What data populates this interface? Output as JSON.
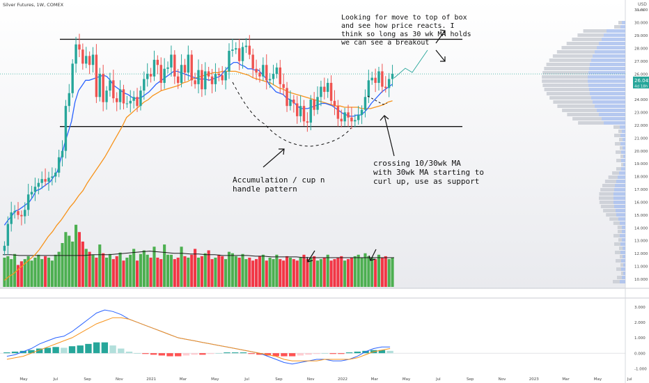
{
  "header": {
    "title": "Silver Futures, 1W, COMEX",
    "currency": "USD",
    "currency_sub": "auto"
  },
  "price_badge": {
    "price": "26.045",
    "countdown": "4d 18h"
  },
  "annotations": {
    "top_note": [
      "Looking for move to top of box",
      "and see how price reacts. I",
      "think so long as 30 wk MA holds",
      "we can see a breakout"
    ],
    "cup_note": [
      "Accumulation / cup n",
      "handle pattern"
    ],
    "ma_note": [
      "crossing 10/30wk MA",
      "with 30wk MA starting to",
      "curl up, use as support"
    ]
  },
  "colors": {
    "up": "#26a69a",
    "down": "#ef5350",
    "vol_up": "#4caf50",
    "vol_down": "#f23645",
    "ma10": "#2962ff",
    "ma30": "#f7931a",
    "macd": "#2962ff",
    "signal": "#f7931a"
  },
  "chart_data": [
    {
      "type": "candlestick",
      "ylim": [
        9.5,
        31.6
      ],
      "y_ticks": [
        "31.000",
        "30.000",
        "29.000",
        "28.000",
        "27.000",
        "26.000",
        "25.000",
        "24.000",
        "23.000",
        "22.000",
        "21.000",
        "20.000",
        "19.000",
        "18.000",
        "17.000",
        "16.000",
        "15.000",
        "14.000",
        "13.000",
        "12.000",
        "11.000",
        "10.000"
      ],
      "x_ticks": [
        "May",
        "Jul",
        "Sep",
        "Nov",
        "2021",
        "Mar",
        "May",
        "Jul",
        "Sep",
        "Nov",
        "2022",
        "Mar",
        "May",
        "Jul",
        "Sep",
        "Nov",
        "2023",
        "Mar",
        "May",
        "Jul"
      ],
      "box_lines": [
        28.7,
        21.9
      ],
      "close": [
        12.6,
        14.3,
        15.2,
        15.3,
        15.0,
        14.9,
        15.4,
        16.6,
        16.8,
        17.2,
        17.5,
        17.8,
        17.6,
        17.9,
        18.0,
        18.3,
        19.5,
        20.0,
        23.5,
        24.5,
        26.8,
        28.3,
        27.9,
        26.8,
        27.4,
        26.7,
        27.5,
        24.2,
        26.0,
        23.8,
        24.7,
        25.5,
        24.1,
        23.8,
        24.8,
        23.7,
        23.7,
        23.9,
        24.2,
        23.5,
        24.7,
        25.6,
        26.0,
        25.8,
        27.1,
        26.7,
        25.3,
        26.4,
        26.5,
        27.5,
        25.8,
        25.3,
        26.7,
        26.1,
        27.5,
        25.5,
        25.2,
        26.3,
        24.8,
        26.2,
        25.8,
        25.2,
        26.0,
        25.9,
        25.5,
        26.2,
        27.8,
        27.9,
        28.0,
        27.0,
        28.1,
        28.2,
        27.5,
        26.4,
        26.1,
        25.8,
        26.7,
        25.5,
        25.6,
        26.0,
        26.5,
        25.2,
        24.9,
        23.5,
        24.0,
        23.7,
        22.7,
        23.5,
        22.3,
        22.2,
        24.0,
        23.2,
        24.2,
        25.0,
        24.6,
        25.3,
        23.9,
        23.5,
        22.5,
        22.3,
        23.0,
        22.6,
        22.3,
        22.4,
        22.8,
        23.2,
        24.2,
        25.5,
        25.7,
        25.3,
        26.2,
        25.0,
        24.9,
        25.6,
        26.0
      ],
      "ma10": [
        14.2,
        14.6,
        14.9,
        15.3,
        15.4,
        15.6,
        15.8,
        16.0,
        16.4,
        16.9,
        17.0,
        17.2,
        17.4,
        17.6,
        18.0,
        18.4,
        19.4,
        20.5,
        21.4,
        22.3,
        23.8,
        24.7,
        25.1,
        25.5,
        25.5,
        25.6,
        25.7,
        25.8,
        25.9,
        25.8,
        25.5,
        25.1,
        24.9,
        24.7,
        24.5,
        24.4,
        24.2,
        24.1,
        24.1,
        24.2,
        24.4,
        24.6,
        24.9,
        25.2,
        25.4,
        25.6,
        25.8,
        26.0,
        26.2,
        26.2,
        26.1,
        26.0,
        25.9,
        25.8,
        25.7,
        25.6,
        25.6,
        25.6,
        25.5,
        25.6,
        25.7,
        25.8,
        26.1,
        26.4,
        26.7,
        26.9,
        26.9,
        26.7,
        26.6,
        26.4,
        26.4,
        26.3,
        26.3,
        26.0,
        25.7,
        25.2,
        24.9,
        24.6,
        24.5,
        24.4,
        24.1,
        24.0,
        23.8,
        23.5,
        23.3,
        23.3,
        23.3,
        23.4,
        23.5,
        23.6,
        23.7,
        23.7,
        23.6,
        23.5,
        23.3,
        23.1,
        22.9,
        22.8,
        22.7,
        22.7,
        22.8,
        22.8,
        23.0,
        23.3,
        23.7,
        24.0,
        24.3,
        24.6,
        24.8,
        25.0,
        25.2
      ],
      "ma30": [
        9.9,
        10.2,
        10.4,
        10.7,
        11.0,
        11.3,
        11.6,
        11.9,
        12.3,
        12.8,
        13.3,
        13.7,
        14.2,
        14.6,
        15.1,
        15.6,
        16.0,
        16.5,
        16.9,
        17.5,
        18.0,
        18.5,
        19.0,
        19.5,
        20.1,
        20.7,
        21.3,
        21.9,
        22.6,
        22.9,
        23.2,
        23.5,
        23.8,
        24.0,
        24.3,
        24.5,
        24.7,
        24.8,
        24.9,
        25.0,
        25.1,
        25.3,
        25.4,
        25.6,
        25.7,
        25.8,
        25.9,
        26.0,
        26.1,
        26.1,
        26.2,
        26.2,
        26.2,
        26.2,
        26.1,
        26.0,
        25.9,
        25.7,
        25.6,
        25.5,
        25.4,
        25.3,
        25.1,
        24.9,
        24.8,
        24.6,
        24.5,
        24.4,
        24.3,
        24.2,
        24.1,
        24.0,
        23.9,
        23.8,
        23.7,
        23.6,
        23.5,
        23.5,
        23.4,
        23.4,
        23.4,
        23.4,
        23.3,
        23.3,
        23.3,
        23.4,
        23.5,
        23.6,
        23.8,
        23.9
      ]
    },
    {
      "type": "bar",
      "name": "volume",
      "values": [
        40,
        42,
        38,
        45,
        30,
        35,
        38,
        42,
        36,
        40,
        44,
        38,
        42,
        40,
        36,
        44,
        48,
        60,
        75,
        70,
        62,
        85,
        75,
        62,
        52,
        48,
        44,
        40,
        58,
        46,
        40,
        45,
        38,
        42,
        47,
        36,
        40,
        44,
        52,
        36,
        45,
        50,
        44,
        40,
        55,
        40,
        38,
        58,
        44,
        44,
        38,
        40,
        55,
        42,
        40,
        44,
        52,
        40,
        42,
        46,
        50,
        38,
        40,
        44,
        42,
        38,
        48,
        46,
        42,
        40,
        45,
        38,
        40,
        36,
        38,
        42,
        44,
        36,
        40,
        38,
        44,
        38,
        36,
        42,
        40,
        38,
        36,
        40,
        44,
        38,
        40,
        42,
        36,
        38,
        40,
        44,
        36,
        38,
        40,
        42,
        36,
        38,
        40,
        42,
        44,
        40,
        46,
        42,
        40,
        38,
        44,
        40,
        42,
        38,
        40
      ],
      "ma": [
        44,
        44,
        43,
        43,
        43,
        43,
        43,
        43,
        43,
        43,
        43,
        44,
        44,
        44,
        45,
        46,
        47,
        48,
        49,
        48,
        47,
        46,
        46,
        45,
        45,
        44,
        44,
        43,
        43,
        43,
        43,
        42,
        42,
        41,
        41,
        41,
        41,
        40,
        40,
        40,
        40,
        40,
        40,
        40,
        40,
        40,
        40,
        40,
        40
      ]
    },
    {
      "type": "line",
      "name": "macd",
      "y_ticks": [
        "3.000",
        "2.000",
        "1.000",
        "0.000",
        "-1.000"
      ],
      "ylim": [
        -1.3,
        3.3
      ],
      "macd": [
        -0.2,
        -0.1,
        0.1,
        0.3,
        0.6,
        0.8,
        1.0,
        1.1,
        1.4,
        1.8,
        2.2,
        2.6,
        2.8,
        2.7,
        2.5,
        2.2,
        2.0,
        1.8,
        1.6,
        1.4,
        1.2,
        1.0,
        0.9,
        0.8,
        0.7,
        0.6,
        0.5,
        0.4,
        0.3,
        0.2,
        0.1,
        0.0,
        -0.2,
        -0.4,
        -0.6,
        -0.7,
        -0.6,
        -0.5,
        -0.4,
        -0.4,
        -0.5,
        -0.5,
        -0.4,
        -0.2,
        0.1,
        0.3,
        0.4,
        0.4
      ],
      "signal": [
        -0.4,
        -0.3,
        -0.2,
        0.0,
        0.2,
        0.4,
        0.6,
        0.8,
        1.0,
        1.3,
        1.6,
        1.9,
        2.1,
        2.3,
        2.3,
        2.2,
        2.0,
        1.8,
        1.6,
        1.4,
        1.2,
        1.0,
        0.9,
        0.8,
        0.7,
        0.6,
        0.5,
        0.4,
        0.3,
        0.2,
        0.1,
        0.0,
        -0.1,
        -0.2,
        -0.4,
        -0.5,
        -0.5,
        -0.5,
        -0.5,
        -0.4,
        -0.4,
        -0.4,
        -0.4,
        -0.3,
        -0.1,
        0.1,
        0.2,
        0.3
      ],
      "histogram": [
        0.05,
        0.1,
        0.15,
        0.2,
        0.3,
        0.35,
        0.4,
        0.35,
        0.45,
        0.5,
        0.6,
        0.7,
        0.7,
        0.5,
        0.3,
        0.1,
        0.0,
        -0.05,
        -0.1,
        -0.15,
        -0.2,
        -0.2,
        -0.15,
        -0.1,
        -0.1,
        -0.05,
        0.0,
        0.05,
        0.05,
        0.05,
        -0.05,
        -0.1,
        -0.15,
        -0.2,
        -0.2,
        -0.2,
        -0.15,
        -0.1,
        -0.05,
        0.0,
        -0.05,
        -0.05,
        0.05,
        0.1,
        0.15,
        0.2,
        0.2,
        0.15
      ]
    }
  ]
}
